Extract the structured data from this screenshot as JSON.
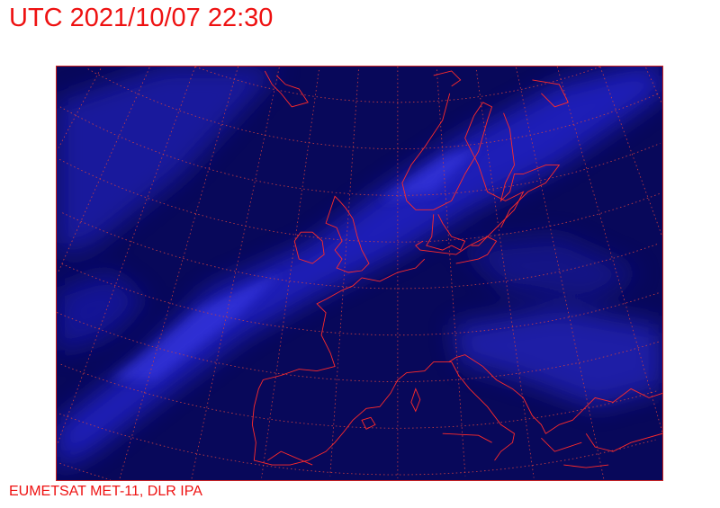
{
  "header": {
    "title": "UTC 2021/10/07 22:30"
  },
  "footer": {
    "credit": "EUMETSAT MET-11, DLR IPA"
  },
  "map": {
    "type": "satellite-infrared-image",
    "region": "Europe",
    "colors": {
      "background": "#05054a",
      "clouds": "#2a2ad8",
      "coastline": "#ff2a2a",
      "graticule": "#d04040",
      "text": "#ee1111"
    }
  }
}
